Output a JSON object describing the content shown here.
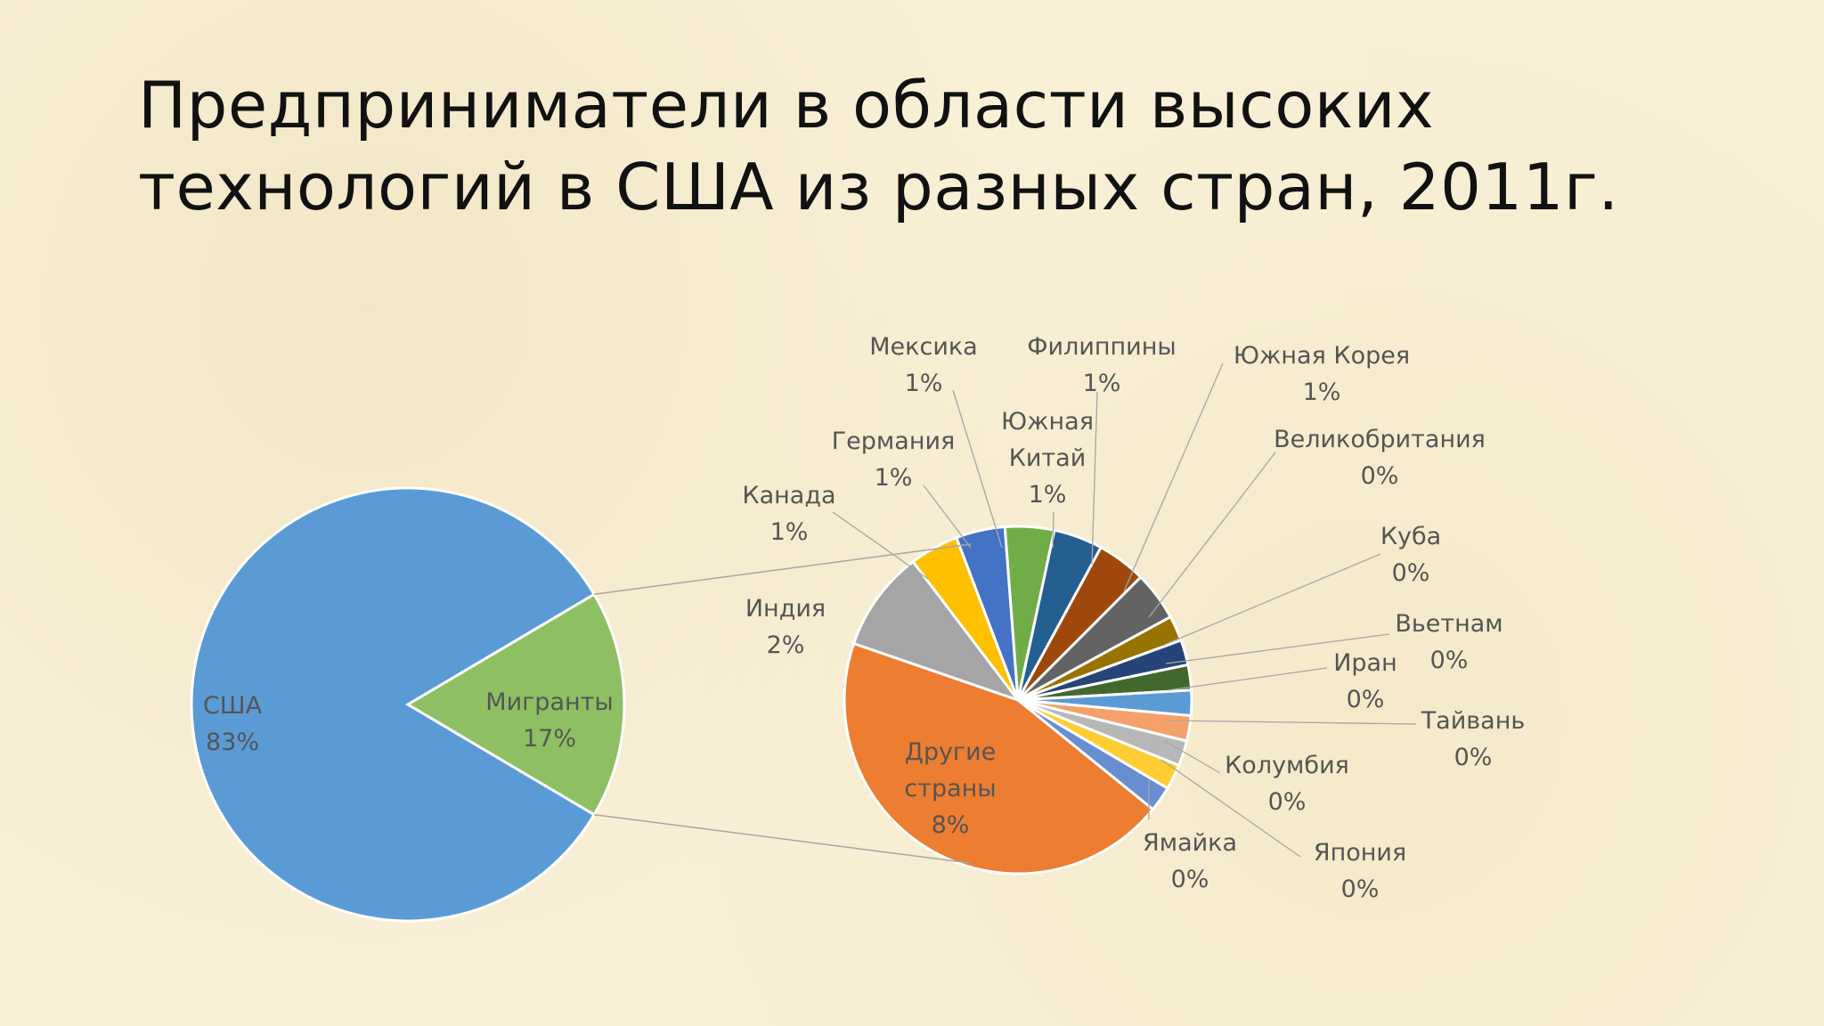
{
  "title": {
    "line1": "Предприниматели в области высоких",
    "line2": "технологий в США из разных стран, 2011г."
  },
  "chart_data": [
    {
      "type": "pie",
      "title": "",
      "slices": [
        {
          "name": "США",
          "value": 83,
          "label": "83%",
          "color": "#5b9bd5"
        },
        {
          "name": "Мигранты",
          "value": 17,
          "label": "17%",
          "color": "#8fbf63"
        }
      ]
    },
    {
      "type": "pie",
      "title": "",
      "slices": [
        {
          "name": "Другие страны",
          "value": 8,
          "label": "8%",
          "color": "#ed7d31"
        },
        {
          "name": "Индия",
          "value": 2,
          "label": "2%",
          "color": "#a5a5a5"
        },
        {
          "name": "Канада",
          "value": 1,
          "label": "1%",
          "color": "#ffc000"
        },
        {
          "name": "Германия",
          "value": 1,
          "label": "1%",
          "color": "#4472c4"
        },
        {
          "name": "Мексика",
          "value": 1,
          "label": "1%",
          "color": "#70ad47"
        },
        {
          "name": "Южная Китай",
          "value": 1,
          "label": "1%",
          "color": "#255e91"
        },
        {
          "name": "Филиппины",
          "value": 1,
          "label": "1%",
          "color": "#9e480e"
        },
        {
          "name": "Южная Корея",
          "value": 1,
          "label": "1%",
          "color": "#636363"
        },
        {
          "name": "Великобритания",
          "value": 0,
          "label": "0%",
          "color": "#997300"
        },
        {
          "name": "Куба",
          "value": 0,
          "label": "0%",
          "color": "#264478"
        },
        {
          "name": "Вьетнам",
          "value": 0,
          "label": "0%",
          "color": "#43682b"
        },
        {
          "name": "Иран",
          "value": 0,
          "label": "0%",
          "color": "#5b9bd5"
        },
        {
          "name": "Тайвань",
          "value": 0,
          "label": "0%",
          "color": "#f4a06a"
        },
        {
          "name": "Колумбия",
          "value": 0,
          "label": "0%",
          "color": "#b7b7b7"
        },
        {
          "name": "Япония",
          "value": 0,
          "label": "0%",
          "color": "#ffcd33"
        },
        {
          "name": "Ямайка",
          "value": 0,
          "label": "0%",
          "color": "#698ed0"
        }
      ]
    }
  ]
}
